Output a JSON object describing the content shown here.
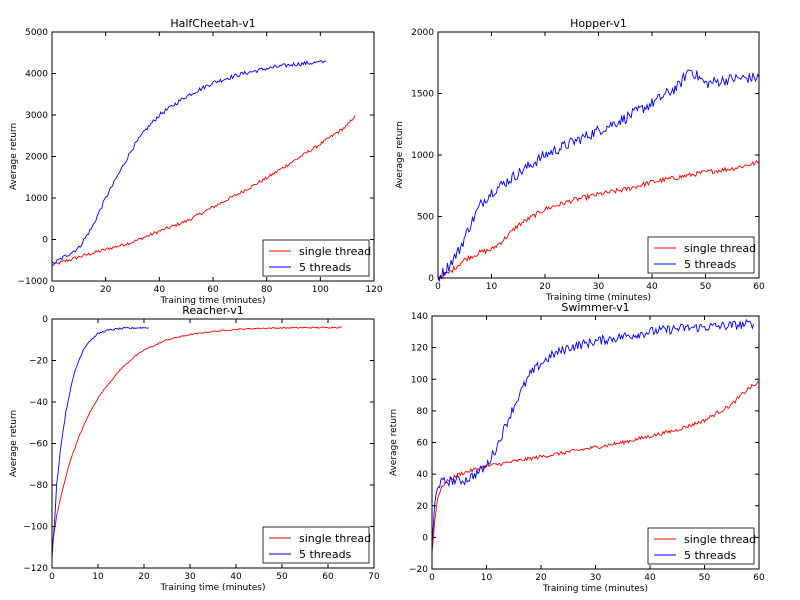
{
  "chart_data": [
    {
      "type": "line",
      "title": "HalfCheetah-v1",
      "xlabel": "Training time (minutes)",
      "ylabel": "Average return",
      "xlim": [
        0,
        120
      ],
      "ylim": [
        -1000,
        5000
      ],
      "xticks": [
        0,
        20,
        40,
        60,
        80,
        100,
        120
      ],
      "yticks": [
        -1000,
        0,
        1000,
        2000,
        3000,
        4000,
        5000
      ],
      "legend_position": "lower-right",
      "series": [
        {
          "name": "single thread",
          "color": "#ff0000",
          "noise": 40,
          "x": [
            0,
            10,
            20,
            30,
            40,
            50,
            60,
            70,
            80,
            90,
            100,
            110,
            113
          ],
          "y": [
            -620,
            -420,
            -240,
            -60,
            200,
            440,
            780,
            1120,
            1480,
            1890,
            2300,
            2740,
            3000
          ]
        },
        {
          "name": "5 threads",
          "color": "#0000ff",
          "noise": 50,
          "x": [
            0,
            5,
            10,
            15,
            20,
            25,
            30,
            35,
            40,
            50,
            60,
            70,
            80,
            90,
            100,
            102
          ],
          "y": [
            -600,
            -400,
            -200,
            300,
            1000,
            1600,
            2200,
            2650,
            3000,
            3450,
            3780,
            3980,
            4120,
            4220,
            4270,
            4280
          ]
        }
      ]
    },
    {
      "type": "line",
      "title": "Hopper-v1",
      "xlabel": "Training time (minutes)",
      "ylabel": "Average return",
      "xlim": [
        0,
        60
      ],
      "ylim": [
        0,
        2000
      ],
      "xticks": [
        0,
        10,
        20,
        30,
        40,
        50,
        60
      ],
      "yticks": [
        0,
        500,
        1000,
        1500,
        2000
      ],
      "legend_position": "lower-right",
      "series": [
        {
          "name": "single thread",
          "color": "#ff0000",
          "noise": 20,
          "x": [
            0,
            2,
            5,
            8,
            10,
            12,
            15,
            20,
            25,
            30,
            35,
            40,
            45,
            50,
            55,
            60
          ],
          "y": [
            0,
            40,
            150,
            210,
            230,
            300,
            430,
            560,
            630,
            680,
            720,
            780,
            820,
            860,
            890,
            940
          ]
        },
        {
          "name": "5 threads",
          "color": "#0000ff",
          "noise": 45,
          "x": [
            0,
            2,
            4,
            6,
            8,
            10,
            15,
            20,
            25,
            30,
            35,
            40,
            45,
            47,
            50,
            55,
            60
          ],
          "y": [
            0,
            100,
            230,
            430,
            600,
            700,
            850,
            1000,
            1100,
            1200,
            1300,
            1420,
            1560,
            1700,
            1580,
            1620,
            1630
          ]
        }
      ]
    },
    {
      "type": "line",
      "title": "Reacher-v1",
      "xlabel": "Training time (minutes)",
      "ylabel": "Average return",
      "xlim": [
        0,
        70
      ],
      "ylim": [
        -120,
        0
      ],
      "xticks": [
        0,
        10,
        20,
        30,
        40,
        50,
        60,
        70
      ],
      "yticks": [
        -120,
        -100,
        -80,
        -60,
        -40,
        -20,
        0
      ],
      "legend_position": "lower-right",
      "series": [
        {
          "name": "single thread",
          "color": "#ff0000",
          "noise": 0.3,
          "x": [
            0,
            1,
            2,
            3,
            4,
            6,
            8,
            10,
            12,
            15,
            18,
            20,
            25,
            30,
            35,
            40,
            45,
            50,
            55,
            60,
            63
          ],
          "y": [
            -110,
            -95,
            -85,
            -76,
            -68,
            -56,
            -46,
            -38,
            -32,
            -24,
            -18,
            -15,
            -10,
            -7.5,
            -6,
            -5,
            -4.5,
            -4.3,
            -4.2,
            -4.1,
            -4
          ]
        },
        {
          "name": "5 threads",
          "color": "#0000ff",
          "noise": 0.4,
          "x": [
            0,
            0.5,
            1,
            2,
            3,
            4,
            5,
            6,
            7,
            8,
            9,
            10,
            12,
            14,
            16,
            18,
            20,
            21
          ],
          "y": [
            -115,
            -100,
            -80,
            -60,
            -45,
            -34,
            -25,
            -19,
            -14,
            -11,
            -9,
            -7,
            -5.5,
            -4.8,
            -4.5,
            -4.3,
            -4.2,
            -4.2
          ]
        }
      ]
    },
    {
      "type": "line",
      "title": "Swimmer-v1",
      "xlabel": "Training time (minutes)",
      "ylabel": "Average return",
      "xlim": [
        0,
        60
      ],
      "ylim": [
        -20,
        140
      ],
      "xticks": [
        0,
        10,
        20,
        30,
        40,
        50,
        60
      ],
      "yticks": [
        -20,
        0,
        20,
        40,
        60,
        80,
        100,
        120,
        140
      ],
      "legend_position": "lower-right",
      "series": [
        {
          "name": "single thread",
          "color": "#ff0000",
          "noise": 1.2,
          "x": [
            0,
            0.5,
            1,
            2,
            3,
            5,
            8,
            10,
            15,
            20,
            25,
            30,
            35,
            40,
            45,
            50,
            55,
            58,
            60
          ],
          "y": [
            -10,
            10,
            25,
            33,
            36,
            40,
            43,
            45,
            48,
            51,
            54,
            57,
            60,
            64,
            68,
            74,
            84,
            94,
            98
          ]
        },
        {
          "name": "5 threads",
          "color": "#0000ff",
          "noise": 3,
          "x": [
            0,
            0.5,
            1,
            2,
            4,
            6,
            8,
            10,
            12,
            14,
            16,
            18,
            20,
            22,
            25,
            30,
            35,
            40,
            45,
            50,
            55,
            59
          ],
          "y": [
            -5,
            20,
            33,
            35,
            36,
            36,
            40,
            45,
            58,
            75,
            90,
            103,
            110,
            115,
            120,
            124,
            127,
            130,
            132,
            133,
            134,
            135
          ]
        }
      ]
    }
  ]
}
